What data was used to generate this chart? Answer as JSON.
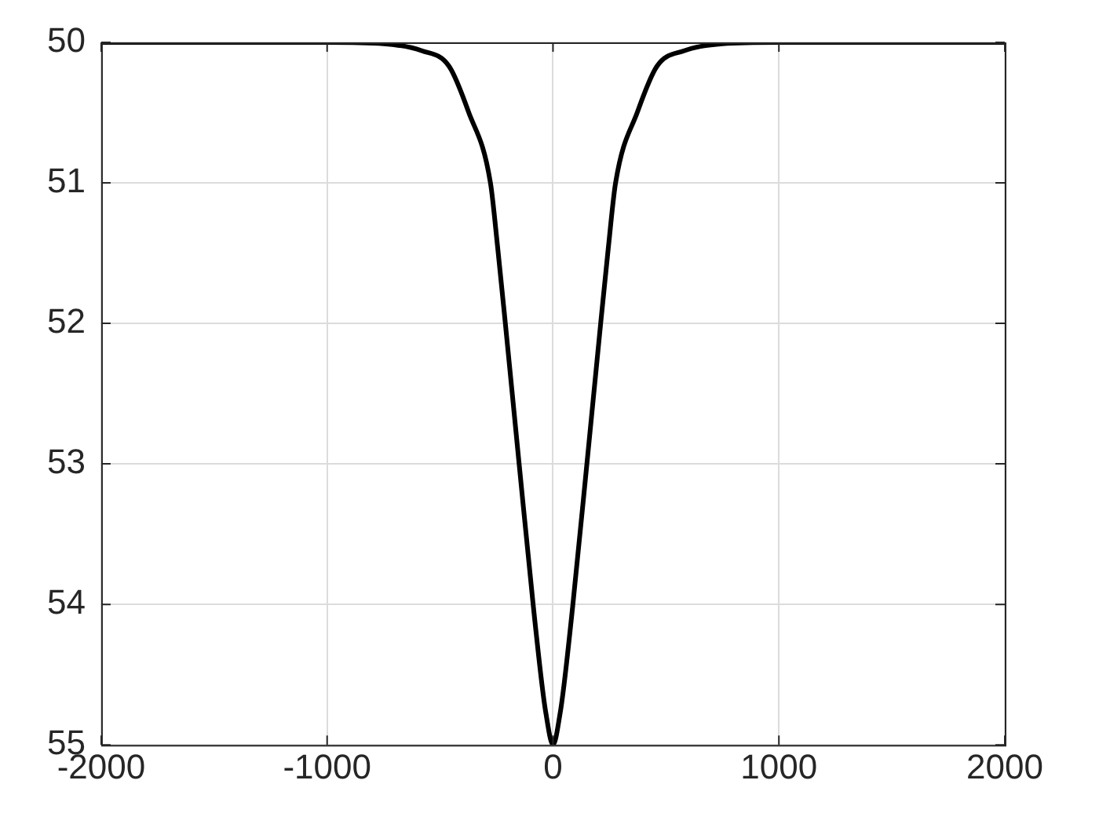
{
  "chart_data": {
    "type": "line",
    "x": [
      -2000,
      -1000,
      -750,
      -580,
      -460,
      -375,
      -277,
      -245,
      -211,
      -150,
      -88,
      -49,
      -32,
      0,
      32,
      49,
      88,
      150,
      211,
      245,
      277,
      375,
      460,
      580,
      750,
      1000,
      2000
    ],
    "series": [
      {
        "color": "#000000",
        "values": [
          50,
          50,
          50.01,
          50.06,
          50.17,
          50.49,
          51,
          51.46,
          52,
          53,
          54,
          54.57,
          54.77,
          55,
          54.77,
          54.57,
          54,
          53,
          52,
          51.46,
          51,
          50.49,
          50.17,
          50.06,
          50.01,
          50,
          50
        ]
      }
    ],
    "xlim": [
      -2000,
      2000
    ],
    "xticks": [
      -2000,
      -1000,
      0,
      1000,
      2000
    ],
    "ylim": [
      55,
      50
    ],
    "yticks": [
      50,
      51,
      52,
      53,
      54,
      55
    ],
    "grid": true,
    "legend": false,
    "marker": "none",
    "line_style": "solid"
  }
}
